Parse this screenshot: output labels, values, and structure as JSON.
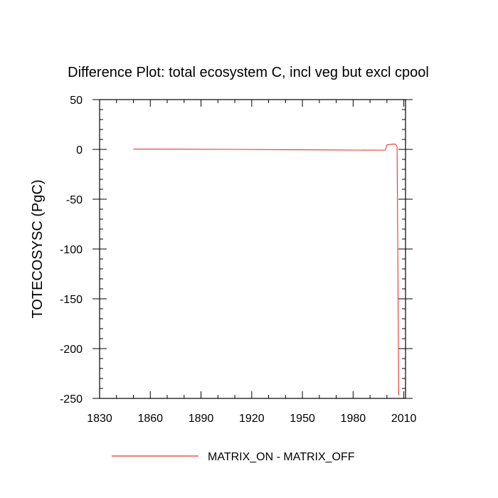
{
  "chart_data": {
    "type": "line",
    "title": "Difference Plot: total ecosystem C, incl veg but excl cpool",
    "xlabel": "",
    "ylabel": "TOTECOSYSC  (PgC)",
    "xlim": [
      1830,
      2011
    ],
    "ylim": [
      -250,
      50
    ],
    "x_ticks": [
      1830,
      1860,
      1890,
      1920,
      1950,
      1980,
      2010
    ],
    "y_ticks": [
      50,
      0,
      -50,
      -100,
      -150,
      -200,
      -250
    ],
    "x_tick_labels": [
      "1830",
      "1860",
      "1890",
      "1920",
      "1950",
      "1980",
      "2010"
    ],
    "y_tick_labels": [
      "50",
      "0",
      "-50",
      "-100",
      "-150",
      "-200",
      "-250"
    ],
    "grid": false,
    "legend_position": "bottom",
    "series": [
      {
        "name": "MATRIX_ON - MATRIX_OFF",
        "color": "#e8352e",
        "x": [
          1850,
          1880,
          1910,
          1940,
          1970,
          1999,
          2000,
          2001,
          2004,
          2005,
          2006,
          2007
        ],
        "y": [
          0.3,
          0.2,
          0.0,
          -0.3,
          -0.6,
          -0.8,
          4.5,
          4.8,
          5.4,
          5.2,
          3.0,
          -247
        ]
      }
    ]
  }
}
